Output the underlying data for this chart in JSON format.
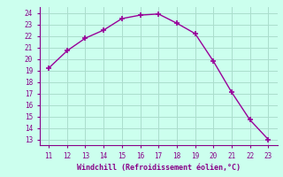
{
  "x": [
    11,
    12,
    13,
    14,
    15,
    16,
    17,
    18,
    19,
    20,
    21,
    22,
    23
  ],
  "y": [
    19.2,
    20.7,
    21.8,
    22.5,
    23.5,
    23.8,
    23.9,
    23.1,
    22.2,
    19.8,
    17.1,
    14.7,
    13.0
  ],
  "line_color": "#990099",
  "marker": "+",
  "marker_size": 4,
  "background_color": "#ccffee",
  "grid_color": "#aaddcc",
  "xlabel": "Windchill (Refroidissement éolien,°C)",
  "xlabel_color": "#880088",
  "tick_color": "#880088",
  "xlim": [
    10.5,
    23.5
  ],
  "ylim": [
    12.5,
    24.5
  ],
  "xticks": [
    11,
    12,
    13,
    14,
    15,
    16,
    17,
    18,
    19,
    20,
    21,
    22,
    23
  ],
  "yticks": [
    13,
    14,
    15,
    16,
    17,
    18,
    19,
    20,
    21,
    22,
    23,
    24
  ],
  "line_width": 1.0
}
